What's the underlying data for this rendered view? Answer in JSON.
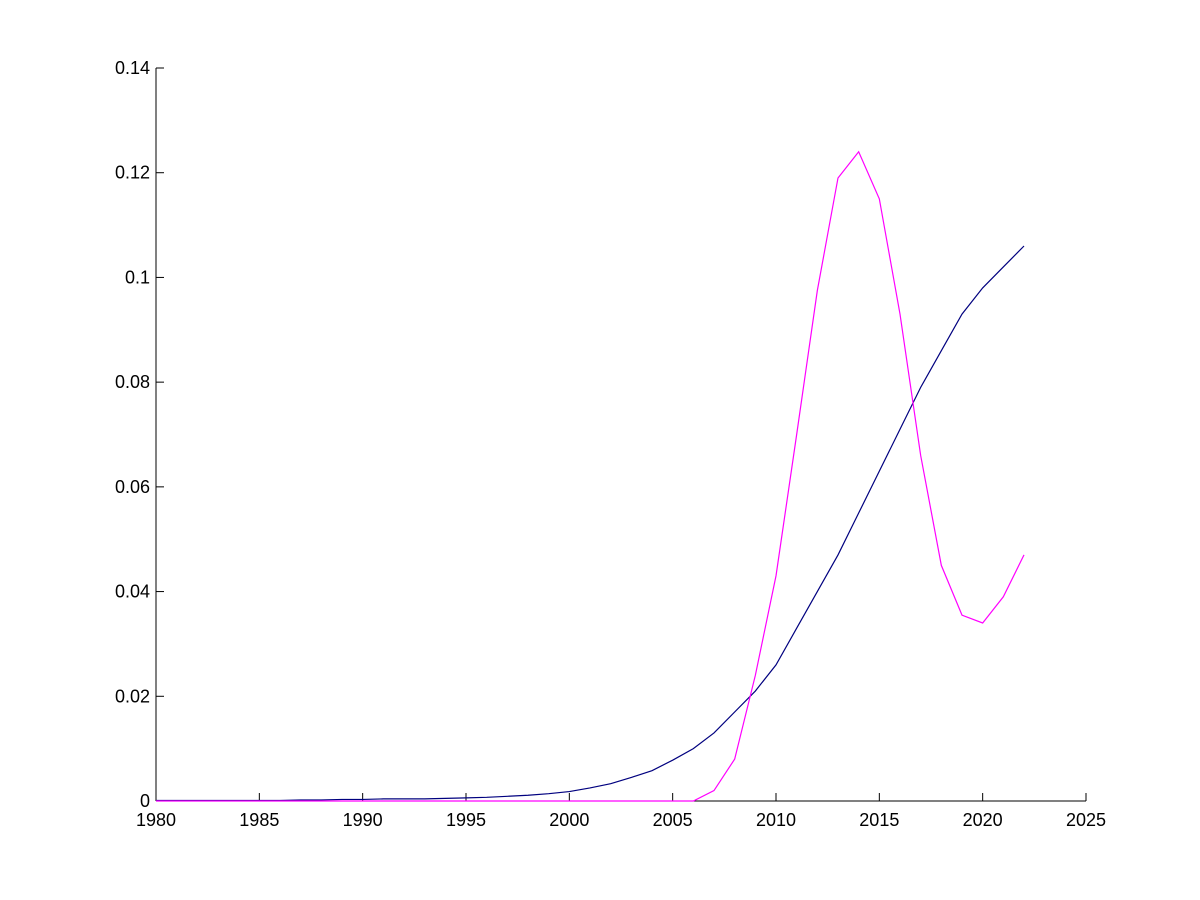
{
  "chart_data": {
    "type": "line",
    "x": [
      1980,
      1981,
      1982,
      1983,
      1984,
      1985,
      1986,
      1987,
      1988,
      1989,
      1990,
      1991,
      1992,
      1993,
      1994,
      1995,
      1996,
      1997,
      1998,
      1999,
      2000,
      2001,
      2002,
      2003,
      2004,
      2005,
      2006,
      2007,
      2008,
      2009,
      2010,
      2011,
      2012,
      2013,
      2014,
      2015,
      2016,
      2017,
      2018,
      2019,
      2020,
      2021,
      2022
    ],
    "series": [
      {
        "color": "#00007f",
        "values": [
          0.0001,
          0.0001,
          0.0001,
          0.0001,
          0.0001,
          0.0001,
          0.0001,
          0.0002,
          0.0002,
          0.0003,
          0.0003,
          0.0004,
          0.0004,
          0.0004,
          0.0005,
          0.0006,
          0.0007,
          0.0009,
          0.0011,
          0.0014,
          0.0018,
          0.0025,
          0.0033,
          0.0045,
          0.0058,
          0.0078,
          0.01,
          0.013,
          0.017,
          0.021,
          0.026,
          0.033,
          0.04,
          0.047,
          0.055,
          0.063,
          0.071,
          0.079,
          0.086,
          0.093,
          0.098,
          0.102,
          0.106
        ]
      },
      {
        "color": "#ff00ff",
        "values": [
          0,
          0,
          0,
          0,
          0,
          0,
          0,
          0,
          0,
          0,
          0,
          0,
          0,
          0,
          0,
          0,
          0,
          0,
          0,
          0,
          0,
          0,
          0,
          0,
          0,
          0,
          0,
          0.002,
          0.008,
          0.024,
          0.043,
          0.07,
          0.0975,
          0.119,
          0.124,
          0.115,
          0.093,
          0.066,
          0.045,
          0.0355,
          0.034,
          0.039,
          0.047
        ]
      }
    ],
    "xlim": [
      1980,
      2025
    ],
    "xticks": [
      1980,
      1985,
      1990,
      1995,
      2000,
      2005,
      2010,
      2015,
      2020,
      2025
    ],
    "ylim": [
      0,
      0.14
    ],
    "yticks": [
      0,
      0.02,
      0.04,
      0.06,
      0.08,
      0.1,
      0.12,
      0.14
    ]
  }
}
